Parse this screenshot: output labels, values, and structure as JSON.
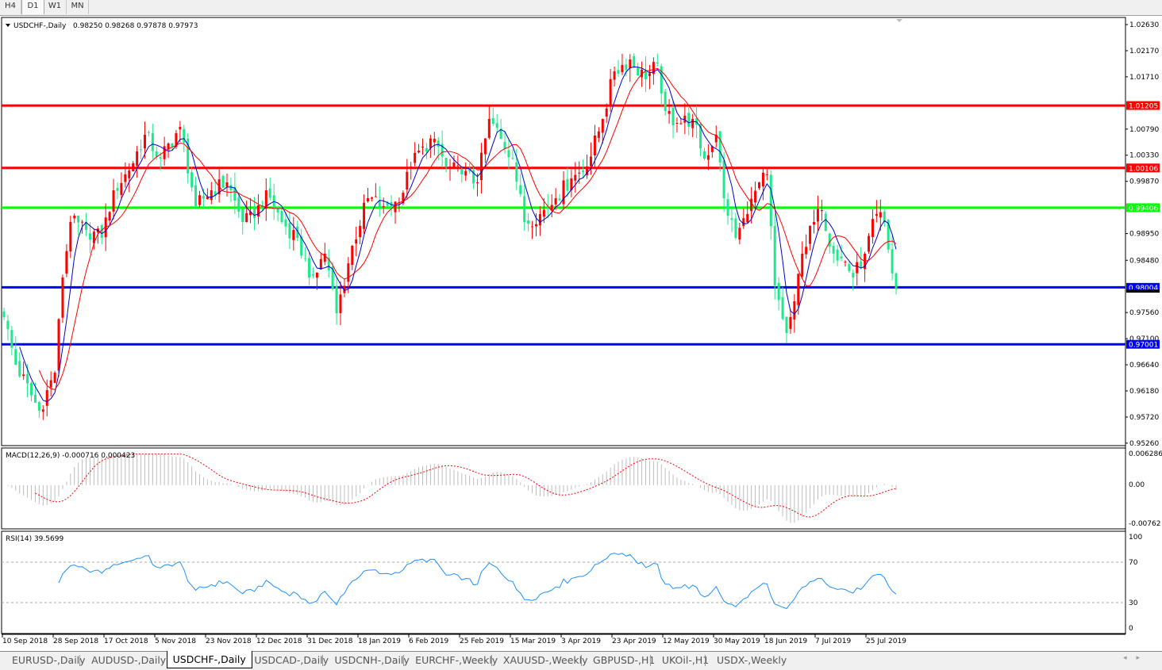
{
  "toolbar": {
    "timeframes": [
      "H4",
      "D1",
      "W1",
      "MN"
    ],
    "active": "D1"
  },
  "chart": {
    "symbol_header": "USDCHF-,Daily",
    "ohlc_header": "0.98250 0.98268 0.97878 0.97973",
    "last_bar": {
      "open": 0.9825,
      "high": 0.98268,
      "low": 0.97878,
      "close": 0.97973
    },
    "colors": {
      "bull": "#ff0000",
      "bear": "#1ee88c",
      "ma_fast": "#0000cc",
      "ma_slow": "#ff0000",
      "macd_hist": "#bdbdbd",
      "macd_signal": "#ff0000",
      "rsi": "#1e90ff"
    },
    "price_ticks": [
      "1.02630",
      "1.02170",
      "1.01710",
      "1.00790",
      "1.00330",
      "0.99870",
      "0.98950",
      "0.98480",
      "0.97560",
      "0.97100",
      "0.96640",
      "0.96180",
      "0.95720",
      "0.95260"
    ],
    "levels": [
      {
        "price": "1.01205",
        "color": "#ff0000"
      },
      {
        "price": "1.00106",
        "color": "#ff0000"
      },
      {
        "price": "0.99406",
        "color": "#00ff00"
      },
      {
        "price": "0.98004",
        "color": "#0000ff"
      },
      {
        "price": "0.97001",
        "color": "#0000ff"
      }
    ],
    "current_price": "0.97973",
    "approx_close_path": [
      [
        0,
        0.97479
      ],
      [
        3,
        0.96641
      ],
      [
        9,
        0.95831
      ],
      [
        13,
        0.96501
      ],
      [
        15,
        0.98177
      ],
      [
        17,
        0.99154
      ],
      [
        21,
        0.99014
      ],
      [
        25,
        0.98875
      ],
      [
        28,
        0.99712
      ],
      [
        32,
        1.00061
      ],
      [
        36,
        1.0069
      ],
      [
        40,
        1.00271
      ],
      [
        45,
        1.00829
      ],
      [
        49,
        0.99433
      ],
      [
        53,
        0.99712
      ],
      [
        57,
        0.99852
      ],
      [
        61,
        0.99154
      ],
      [
        64,
        0.99224
      ],
      [
        67,
        0.99712
      ],
      [
        71,
        0.99154
      ],
      [
        75,
        0.98875
      ],
      [
        78,
        0.98177
      ],
      [
        82,
        0.98596
      ],
      [
        85,
        0.97548
      ],
      [
        89,
        0.98735
      ],
      [
        93,
        0.99573
      ],
      [
        97,
        0.99433
      ],
      [
        101,
        0.99503
      ],
      [
        104,
        1.00131
      ],
      [
        107,
        1.0048
      ],
      [
        110,
        1.0062
      ],
      [
        113,
        1.00131
      ],
      [
        117,
        0.99992
      ],
      [
        121,
        0.99852
      ],
      [
        124,
        1.00969
      ],
      [
        127,
        1.0062
      ],
      [
        130,
        1.00271
      ],
      [
        133,
        0.99154
      ],
      [
        137,
        0.99294
      ],
      [
        141,
        0.99573
      ],
      [
        145,
        0.99922
      ],
      [
        149,
        1.00131
      ],
      [
        153,
        1.00969
      ],
      [
        156,
        1.01806
      ],
      [
        160,
        1.02016
      ],
      [
        164,
        1.01667
      ],
      [
        167,
        1.01946
      ],
      [
        169,
        1.01108
      ],
      [
        172,
        1.00899
      ],
      [
        176,
        1.00969
      ],
      [
        179,
        1.00271
      ],
      [
        182,
        1.0069
      ],
      [
        184,
        0.99573
      ],
      [
        187,
        0.98875
      ],
      [
        190,
        0.99294
      ],
      [
        193,
        0.99852
      ],
      [
        195,
        0.99992
      ],
      [
        197,
        0.98037
      ],
      [
        200,
        0.97199
      ],
      [
        202,
        0.97758
      ],
      [
        204,
        0.98596
      ],
      [
        207,
        0.99154
      ],
      [
        209,
        0.99363
      ],
      [
        212,
        0.98596
      ],
      [
        215,
        0.98456
      ],
      [
        217,
        0.98177
      ],
      [
        220,
        0.98596
      ],
      [
        223,
        0.99294
      ],
      [
        225,
        0.99154
      ],
      [
        227,
        0.98247
      ],
      [
        228,
        0.97973
      ]
    ]
  },
  "macd": {
    "label": "MACD(12,26,9) -0.000716 0.000423",
    "ticks": [
      "0.006286",
      "0.00",
      "-0.00762"
    ]
  },
  "rsi": {
    "label": "RSI(14) 39.5699",
    "ticks": [
      "100",
      "70",
      "30",
      "0"
    ]
  },
  "date_axis": [
    "10 Sep 2018",
    "28 Sep 2018",
    "17 Oct 2018",
    "5 Nov 2018",
    "23 Nov 2018",
    "12 Dec 2018",
    "31 Dec 2018",
    "18 Jan 2019",
    "6 Feb 2019",
    "25 Feb 2019",
    "15 Mar 2019",
    "3 Apr 2019",
    "23 Apr 2019",
    "12 May 2019",
    "30 May 2019",
    "18 Jun 2019",
    "7 Jul 2019",
    "25 Jul 2019"
  ],
  "tabs": {
    "items": [
      "EURUSD-,Daily",
      "AUDUSD-,Daily",
      "USDCHF-,Daily",
      "USDCAD-,Daily",
      "USDCNH-,Daily",
      "EURCHF-,Weekly",
      "XAUUSD-,Weekly",
      "GBPUSD-,H1",
      "UKOil-,H1",
      "USDX-,Weekly"
    ],
    "active": "USDCHF-,Daily"
  }
}
